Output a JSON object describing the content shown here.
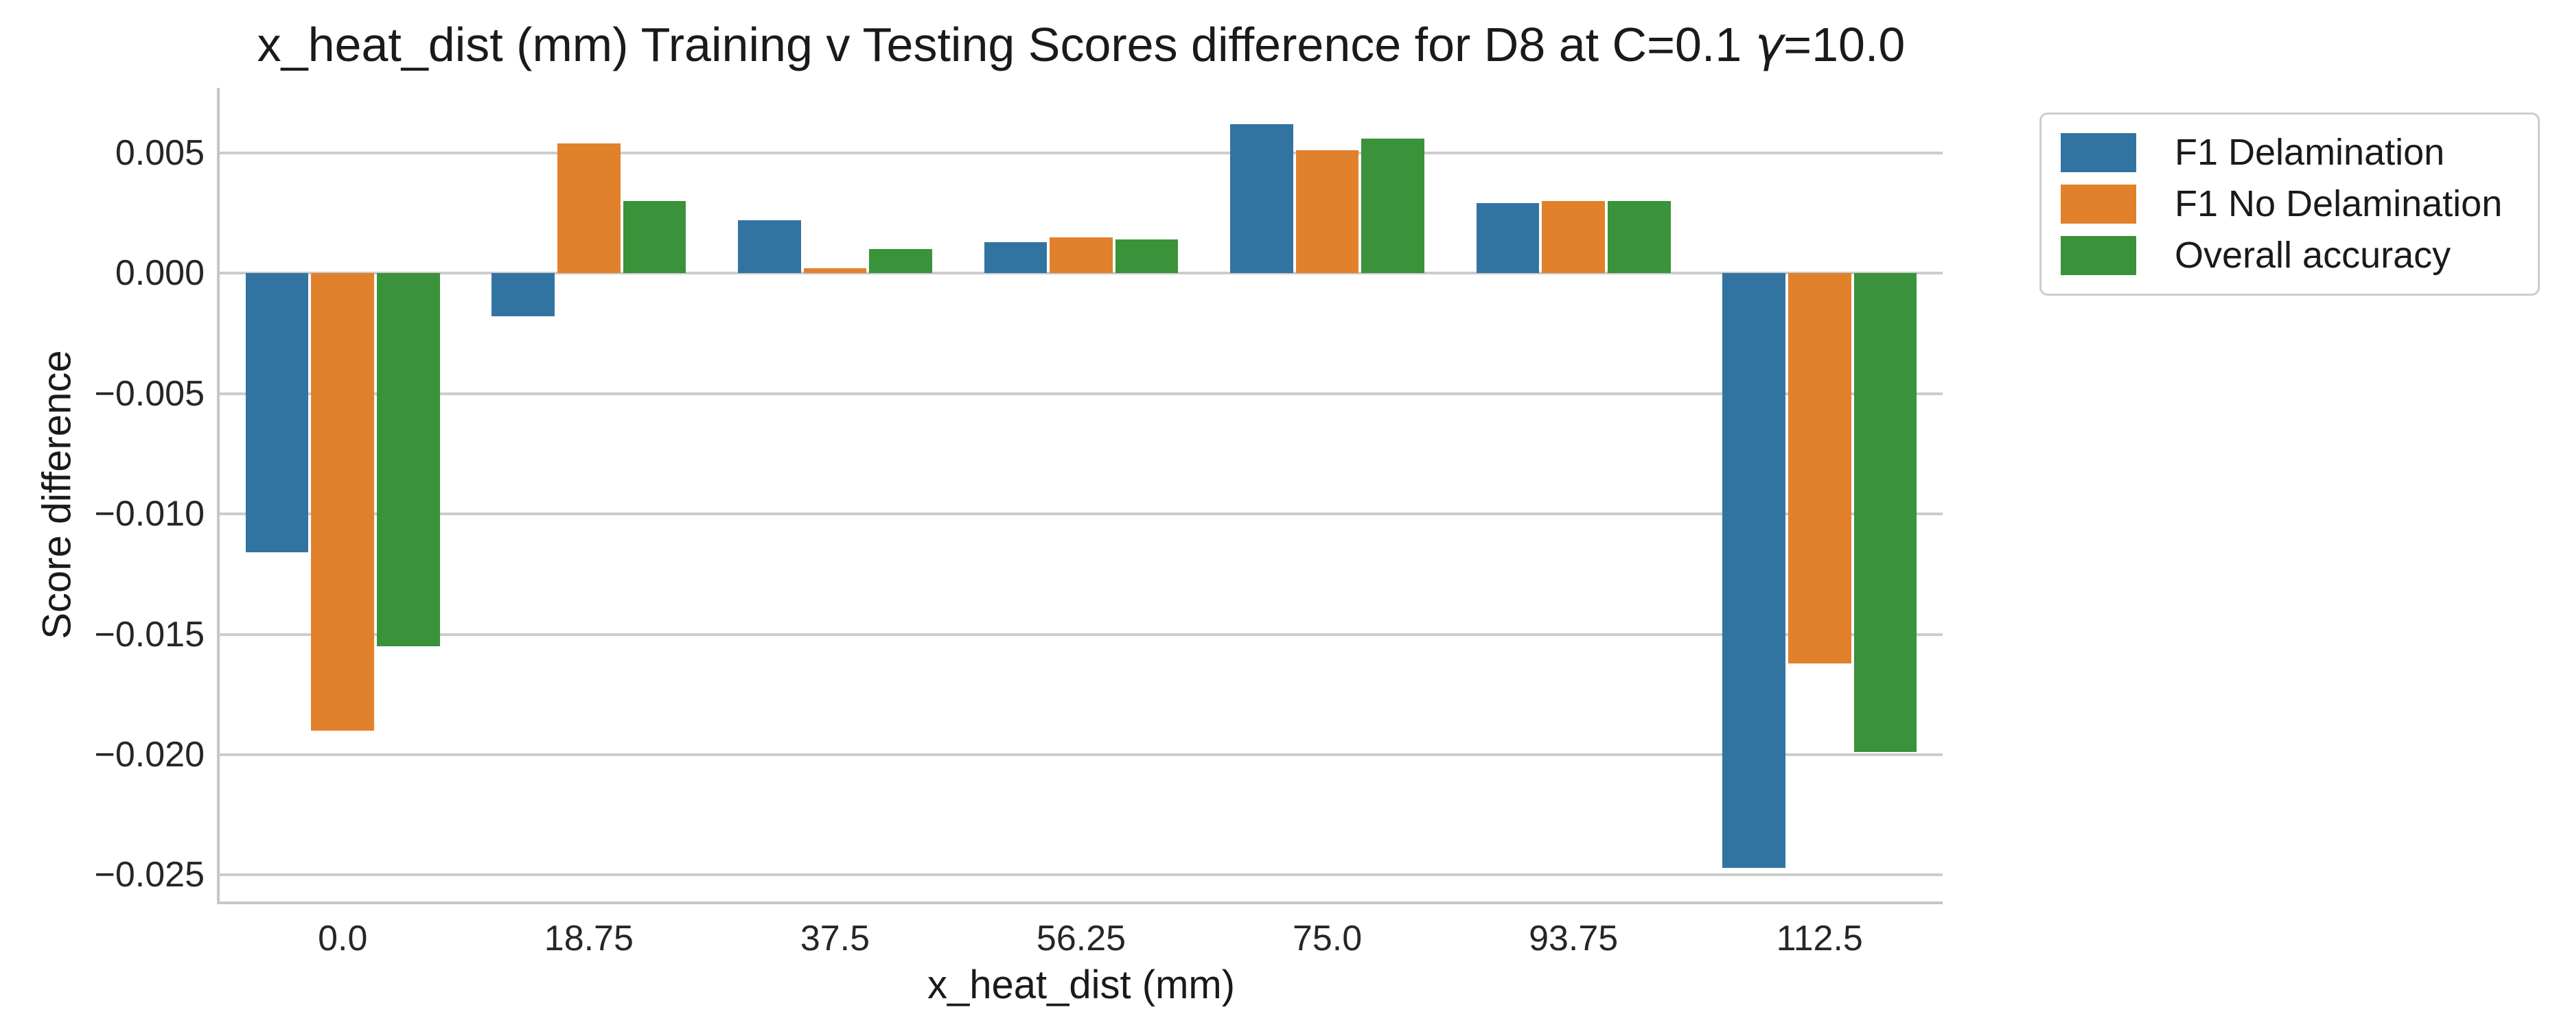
{
  "figure": {
    "title_before_gamma": "x_heat_dist (mm) Training v Testing Scores difference for D8 at C=0.1 ",
    "title_gamma": "γ",
    "title_after_gamma": "=10.0"
  },
  "chart_data": {
    "type": "bar",
    "title": "x_heat_dist (mm) Training v Testing Scores difference for D8 at C=0.1 γ=10.0",
    "xlabel": "x_heat_dist (mm)",
    "ylabel": "Score difference",
    "categories": [
      "0.0",
      "18.75",
      "37.5",
      "56.25",
      "75.0",
      "93.75",
      "112.5"
    ],
    "series": [
      {
        "name": "F1 Delamination",
        "color": "#3274a1",
        "values": [
          -0.0116,
          -0.0018,
          0.0022,
          0.0013,
          0.0062,
          0.0029,
          -0.0247
        ]
      },
      {
        "name": "F1 No Delamination",
        "color": "#e1812c",
        "values": [
          -0.019,
          0.0054,
          0.0002,
          0.0015,
          0.0051,
          0.003,
          -0.0162
        ]
      },
      {
        "name": "Overall accuracy",
        "color": "#3a923a",
        "values": [
          -0.0155,
          0.003,
          0.001,
          0.0014,
          0.0056,
          0.003,
          -0.0199
        ]
      }
    ],
    "ylim": [
      -0.0261,
      0.0077
    ],
    "yticks": [
      {
        "value": 0.005,
        "label": "0.005"
      },
      {
        "value": 0.0,
        "label": "0.000"
      },
      {
        "value": -0.005,
        "label": "−0.005"
      },
      {
        "value": -0.01,
        "label": "−0.010"
      },
      {
        "value": -0.015,
        "label": "−0.015"
      },
      {
        "value": -0.02,
        "label": "−0.020"
      },
      {
        "value": -0.025,
        "label": "−0.025"
      }
    ],
    "grid": true,
    "grid_color": "#cccccc",
    "legend_position": "outside upper right",
    "bar_group_width": 0.8
  }
}
